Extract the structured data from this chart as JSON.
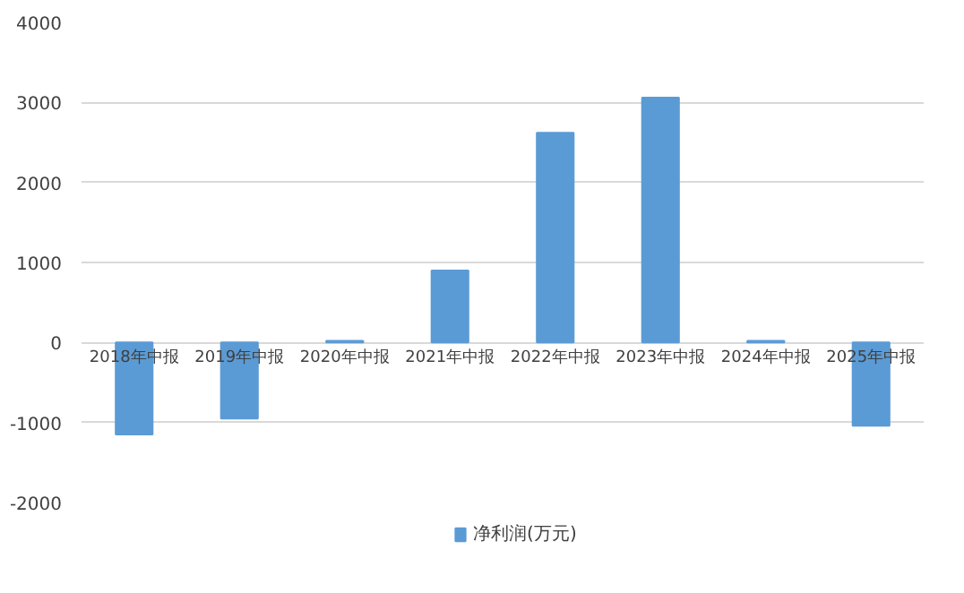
{
  "chart_data": {
    "type": "bar",
    "categories": [
      "2018年中报",
      "2019年中报",
      "2020年中报",
      "2021年中报",
      "2022年中报",
      "2023年中报",
      "2024年中报",
      "2025年中报"
    ],
    "series": [
      {
        "name": "净利润(万元)",
        "color": "#5b9bd5",
        "values": [
          -1150,
          -950,
          20,
          900,
          2620,
          3060,
          20,
          -1040
        ]
      }
    ],
    "ylim": [
      -2000,
      4000
    ],
    "yticks": [
      -2000,
      -1000,
      0,
      1000,
      2000,
      3000,
      4000
    ],
    "grid": "y",
    "legend": "bottom"
  }
}
